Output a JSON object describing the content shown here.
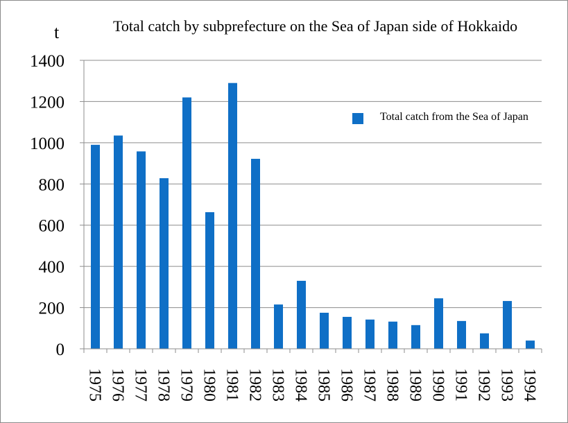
{
  "chart_data": {
    "type": "bar",
    "title": "Total catch by subprefecture on the Sea of Japan side of Hokkaido",
    "ylabel": "t",
    "xlabel": "",
    "ylim": [
      0,
      1400
    ],
    "yticks": [
      0,
      200,
      400,
      600,
      800,
      1000,
      1200,
      1400
    ],
    "grid": true,
    "legend_position": "right",
    "bar_color": "#0f6fc6",
    "categories": [
      "1975",
      "1976",
      "1977",
      "1978",
      "1979",
      "1980",
      "1981",
      "1982",
      "1983",
      "1984",
      "1985",
      "1986",
      "1987",
      "1988",
      "1989",
      "1990",
      "1991",
      "1992",
      "1993",
      "1994"
    ],
    "series": [
      {
        "name": "Total catch from the Sea of Japan",
        "values": [
          990,
          1035,
          958,
          828,
          1220,
          663,
          1290,
          922,
          215,
          330,
          175,
          155,
          142,
          132,
          115,
          245,
          135,
          75,
          232,
          40
        ]
      }
    ]
  }
}
